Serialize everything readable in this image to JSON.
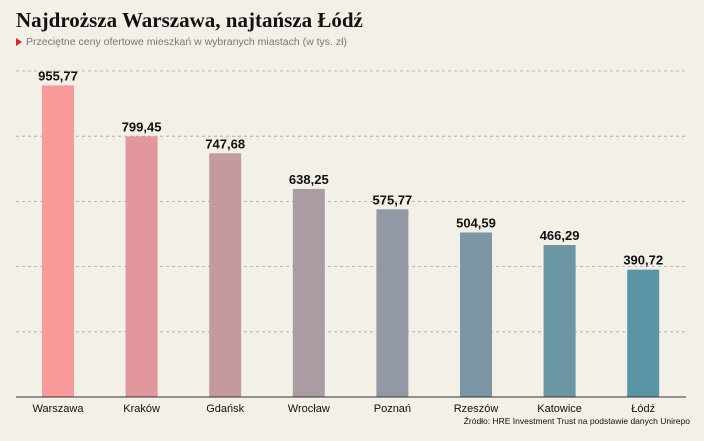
{
  "header": {
    "title": "Najdroższa Warszawa, najtańsza Łódź",
    "subtitle": "Przeciętne ceny ofertowe mieszkań w wybranych miastach (w tys. zł)"
  },
  "source": "Źródło: HRE Investment Trust na podstawie danych Unirepo",
  "colors": {
    "background": "#f3f0e8",
    "marker": "#d62828",
    "bars": [
      "#f99a9b",
      "#e1979c",
      "#c59a9f",
      "#ab9ba2",
      "#9299a4",
      "#7d96a5",
      "#6b96a4",
      "#5b94a4"
    ]
  },
  "chart_data": {
    "type": "bar",
    "title": "Najdroższa Warszawa, najtańsza Łódź",
    "subtitle": "Przeciętne ceny ofertowe mieszkań w wybranych miastach (w tys. zł)",
    "categories": [
      "Warszawa",
      "Kraków",
      "Gdańsk",
      "Wrocław",
      "Poznań",
      "Rzeszów",
      "Katowice",
      "Łódź"
    ],
    "values": [
      955.77,
      799.45,
      747.68,
      638.25,
      575.77,
      504.59,
      466.29,
      390.72
    ],
    "value_labels": [
      "955,77",
      "799,45",
      "747,68",
      "638,25",
      "575,77",
      "504,59",
      "466,29",
      "390,72"
    ],
    "xlabel": "",
    "ylabel": "",
    "ylim": [
      0,
      1000
    ],
    "grid": true,
    "grid_style": "dashed horizontal"
  }
}
